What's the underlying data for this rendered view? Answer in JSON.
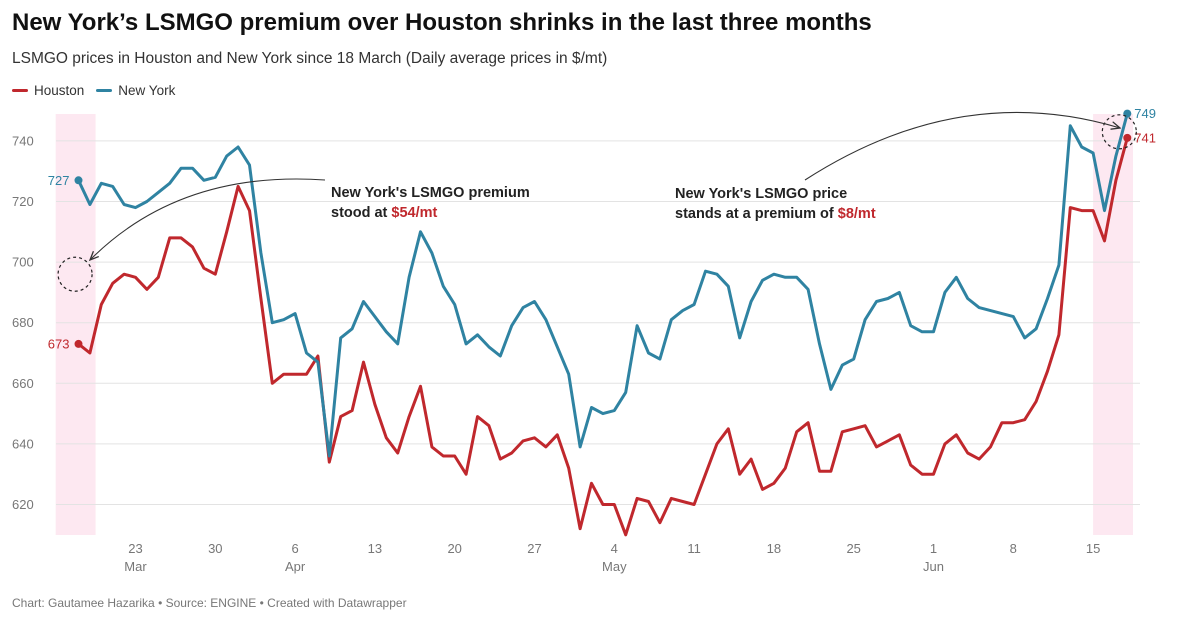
{
  "header": {
    "title": "New York’s LSMGO premium over Houston shrinks in the last three months",
    "subtitle": "LSMGO prices in Houston and New York since 18 March (Daily average prices in $/mt)"
  },
  "footer": {
    "credit": "Chart: Gautamee Hazarika • Source: ENGINE • Created with Datawrapper"
  },
  "colors": {
    "houston": "#c0282d",
    "new_york": "#2f83a2",
    "highlight": "#fde8f1"
  },
  "chart_data": {
    "type": "line",
    "x_unit": "day index (0 = 18 March)",
    "x_ticks": [
      {
        "day": 5,
        "label": "23",
        "month": "Mar"
      },
      {
        "day": 12,
        "label": "30",
        "month": ""
      },
      {
        "day": 19,
        "label": "6",
        "month": "Apr"
      },
      {
        "day": 26,
        "label": "13",
        "month": ""
      },
      {
        "day": 33,
        "label": "20",
        "month": ""
      },
      {
        "day": 40,
        "label": "27",
        "month": ""
      },
      {
        "day": 47,
        "label": "4",
        "month": "May"
      },
      {
        "day": 54,
        "label": "11",
        "month": ""
      },
      {
        "day": 61,
        "label": "18",
        "month": ""
      },
      {
        "day": 68,
        "label": "25",
        "month": ""
      },
      {
        "day": 75,
        "label": "1",
        "month": "Jun"
      },
      {
        "day": 82,
        "label": "8",
        "month": ""
      },
      {
        "day": 89,
        "label": "15",
        "month": ""
      }
    ],
    "y_ticks": [
      620,
      640,
      660,
      680,
      700,
      720,
      740
    ],
    "ylim": [
      610,
      750
    ],
    "grid": true,
    "legend_position": "top-left",
    "highlight_ranges": [
      [
        -2,
        1.5
      ],
      [
        89,
        92.5
      ]
    ],
    "series": [
      {
        "name": "Houston",
        "color": "#c0282d",
        "points": [
          [
            0,
            673
          ],
          [
            1,
            670
          ],
          [
            2,
            686
          ],
          [
            3,
            693
          ],
          [
            4,
            696
          ],
          [
            5,
            695
          ],
          [
            6,
            691
          ],
          [
            7,
            695
          ],
          [
            8,
            708
          ],
          [
            9,
            708
          ],
          [
            10,
            705
          ],
          [
            11,
            698
          ],
          [
            12,
            696
          ],
          [
            13,
            710
          ],
          [
            14,
            725
          ],
          [
            15,
            717
          ],
          [
            16,
            688
          ],
          [
            17,
            660
          ],
          [
            18,
            663
          ],
          [
            19,
            663
          ],
          [
            20,
            663
          ],
          [
            21,
            669
          ],
          [
            22,
            634
          ],
          [
            23,
            649
          ],
          [
            24,
            651
          ],
          [
            25,
            667
          ],
          [
            26,
            653
          ],
          [
            27,
            642
          ],
          [
            28,
            637
          ],
          [
            29,
            649
          ],
          [
            30,
            659
          ],
          [
            31,
            639
          ],
          [
            32,
            636
          ],
          [
            33,
            636
          ],
          [
            34,
            630
          ],
          [
            35,
            649
          ],
          [
            36,
            646
          ],
          [
            37,
            635
          ],
          [
            38,
            637
          ],
          [
            39,
            641
          ],
          [
            40,
            642
          ],
          [
            41,
            639
          ],
          [
            42,
            643
          ],
          [
            43,
            632
          ],
          [
            44,
            612
          ],
          [
            45,
            627
          ],
          [
            46,
            620
          ],
          [
            47,
            620
          ],
          [
            48,
            610
          ],
          [
            49,
            622
          ],
          [
            50,
            621
          ],
          [
            51,
            614
          ],
          [
            52,
            622
          ],
          [
            53,
            621
          ],
          [
            54,
            620
          ],
          [
            55,
            630
          ],
          [
            56,
            640
          ],
          [
            57,
            645
          ],
          [
            58,
            630
          ],
          [
            59,
            635
          ],
          [
            60,
            625
          ],
          [
            61,
            627
          ],
          [
            62,
            632
          ],
          [
            63,
            644
          ],
          [
            64,
            647
          ],
          [
            65,
            631
          ],
          [
            66,
            631
          ],
          [
            67,
            644
          ],
          [
            68,
            645
          ],
          [
            69,
            646
          ],
          [
            70,
            639
          ],
          [
            71,
            641
          ],
          [
            72,
            643
          ],
          [
            73,
            633
          ],
          [
            74,
            630
          ],
          [
            75,
            630
          ],
          [
            76,
            640
          ],
          [
            77,
            643
          ],
          [
            78,
            637
          ],
          [
            79,
            635
          ],
          [
            80,
            639
          ],
          [
            81,
            647
          ],
          [
            82,
            647
          ],
          [
            83,
            648
          ],
          [
            84,
            654
          ],
          [
            85,
            664
          ],
          [
            86,
            676
          ],
          [
            87,
            718
          ],
          [
            88,
            717
          ],
          [
            89,
            717
          ],
          [
            90,
            707
          ],
          [
            91,
            727
          ],
          [
            92,
            741
          ]
        ],
        "end_labels": [
          {
            "day": 0,
            "text": "673"
          },
          {
            "day": 92,
            "text": "741"
          }
        ]
      },
      {
        "name": "New York",
        "color": "#2f83a2",
        "points": [
          [
            0,
            727
          ],
          [
            1,
            719
          ],
          [
            2,
            726
          ],
          [
            3,
            725
          ],
          [
            4,
            719
          ],
          [
            5,
            718
          ],
          [
            6,
            720
          ],
          [
            7,
            723
          ],
          [
            8,
            726
          ],
          [
            9,
            731
          ],
          [
            10,
            731
          ],
          [
            11,
            727
          ],
          [
            12,
            728
          ],
          [
            13,
            735
          ],
          [
            14,
            738
          ],
          [
            15,
            732
          ],
          [
            16,
            703
          ],
          [
            17,
            680
          ],
          [
            18,
            681
          ],
          [
            19,
            683
          ],
          [
            20,
            670
          ],
          [
            21,
            667
          ],
          [
            22,
            636
          ],
          [
            23,
            675
          ],
          [
            24,
            678
          ],
          [
            25,
            687
          ],
          [
            26,
            682
          ],
          [
            27,
            677
          ],
          [
            28,
            673
          ],
          [
            29,
            695
          ],
          [
            30,
            710
          ],
          [
            31,
            703
          ],
          [
            32,
            692
          ],
          [
            33,
            686
          ],
          [
            34,
            673
          ],
          [
            35,
            676
          ],
          [
            36,
            672
          ],
          [
            37,
            669
          ],
          [
            38,
            679
          ],
          [
            39,
            685
          ],
          [
            40,
            687
          ],
          [
            41,
            681
          ],
          [
            42,
            672
          ],
          [
            43,
            663
          ],
          [
            44,
            639
          ],
          [
            45,
            652
          ],
          [
            46,
            650
          ],
          [
            47,
            651
          ],
          [
            48,
            657
          ],
          [
            49,
            679
          ],
          [
            50,
            670
          ],
          [
            51,
            668
          ],
          [
            52,
            681
          ],
          [
            53,
            684
          ],
          [
            54,
            686
          ],
          [
            55,
            697
          ],
          [
            56,
            696
          ],
          [
            57,
            692
          ],
          [
            58,
            675
          ],
          [
            59,
            687
          ],
          [
            60,
            694
          ],
          [
            61,
            696
          ],
          [
            62,
            695
          ],
          [
            63,
            695
          ],
          [
            64,
            691
          ],
          [
            65,
            673
          ],
          [
            66,
            658
          ],
          [
            67,
            666
          ],
          [
            68,
            668
          ],
          [
            69,
            681
          ],
          [
            70,
            687
          ],
          [
            71,
            688
          ],
          [
            72,
            690
          ],
          [
            73,
            679
          ],
          [
            74,
            677
          ],
          [
            75,
            677
          ],
          [
            76,
            690
          ],
          [
            77,
            695
          ],
          [
            78,
            688
          ],
          [
            79,
            685
          ],
          [
            80,
            684
          ],
          [
            81,
            683
          ],
          [
            82,
            682
          ],
          [
            83,
            675
          ],
          [
            84,
            678
          ],
          [
            85,
            688
          ],
          [
            86,
            699
          ],
          [
            87,
            745
          ],
          [
            88,
            738
          ],
          [
            89,
            736
          ],
          [
            90,
            717
          ],
          [
            91,
            735
          ],
          [
            92,
            749
          ]
        ],
        "end_labels": [
          {
            "day": 0,
            "text": "727"
          },
          {
            "day": 92,
            "text": "749"
          }
        ]
      }
    ],
    "annotations": [
      {
        "lines": [
          {
            "parts": [
              {
                "text": "New York's LSMGO premium",
                "hl": false
              }
            ]
          },
          {
            "parts": [
              {
                "text": "stood at ",
                "hl": false
              },
              {
                "text": "$54/mt",
                "hl": true
              }
            ]
          }
        ],
        "circle_at": {
          "day": -0.3,
          "value": 696
        }
      },
      {
        "lines": [
          {
            "parts": [
              {
                "text": "New York's LSMGO price",
                "hl": false
              }
            ]
          },
          {
            "parts": [
              {
                "text": "stands at a premium of ",
                "hl": false
              },
              {
                "text": "$8/mt",
                "hl": true
              }
            ]
          }
        ],
        "circle_at": {
          "day": 91.3,
          "value": 743
        }
      }
    ]
  }
}
